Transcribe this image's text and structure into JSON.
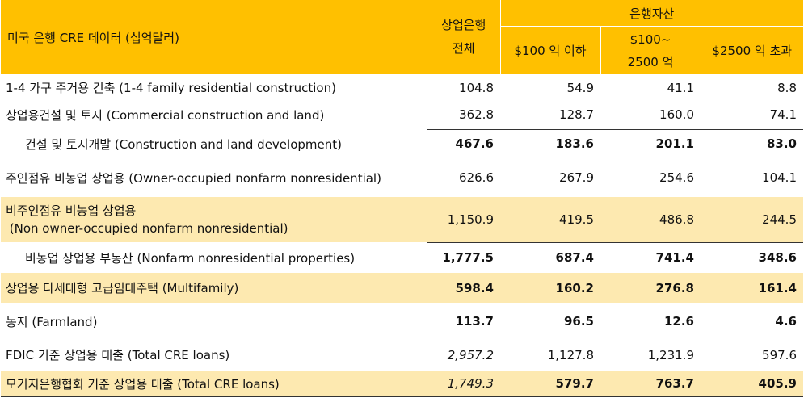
{
  "header": {
    "title": "미국 은행 CRE 데이터 (십억달러)",
    "total_line1": "상업은행",
    "total_line2": "전체",
    "group": "은행자산",
    "cols": [
      {
        "l1": "$100 억 이하",
        "l2": ""
      },
      {
        "l1": "$100~",
        "l2": "2500 억"
      },
      {
        "l1": "$2500 억 초과",
        "l2": ""
      }
    ]
  },
  "rows": [
    {
      "label": "1-4 가구 주거용 건축 (1-4 family residential construction)",
      "total": "104.8",
      "a": "54.9",
      "b": "41.1",
      "c": "8.8"
    },
    {
      "label": "상업용건설 및 토지 (Commercial construction and land)",
      "total": "362.8",
      "a": "128.7",
      "b": "160.0",
      "c": "74.1"
    },
    {
      "label": "건설 및 토지개발 (Construction and land development)",
      "total": "467.6",
      "a": "183.6",
      "b": "201.1",
      "c": "83.0"
    },
    {
      "label": "주인점유 비농업 상업용 (Owner-occupied nonfarm nonresidential)",
      "total": "626.6",
      "a": "267.9",
      "b": "254.6",
      "c": "104.1"
    },
    {
      "label1": "비주인점유 비농업 상업용",
      "label2": " (Non owner-occupied nonfarm nonresidential)",
      "total": "1,150.9",
      "a": "419.5",
      "b": "486.8",
      "c": "244.5"
    },
    {
      "label": "비농업 상업용 부동산 (Nonfarm nonresidential properties)",
      "total": "1,777.5",
      "a": "687.4",
      "b": "741.4",
      "c": "348.6"
    },
    {
      "label": "상업용 다세대형 고급임대주택 (Multifamily)",
      "total": "598.4",
      "a": "160.2",
      "b": "276.8",
      "c": "161.4"
    },
    {
      "label": "농지 (Farmland)",
      "total": "113.7",
      "a": "96.5",
      "b": "12.6",
      "c": "4.6"
    },
    {
      "label": "FDIC 기준 상업용 대출 (Total CRE loans)",
      "total": "2,957.2",
      "a": "1,127.8",
      "b": "1,231.9",
      "c": "597.6"
    },
    {
      "label": "모기지은행협회 기준 상업용 대출 (Total CRE loans)",
      "total": "1,749.3",
      "a": "579.7",
      "b": "763.7",
      "c": "405.9"
    }
  ]
}
